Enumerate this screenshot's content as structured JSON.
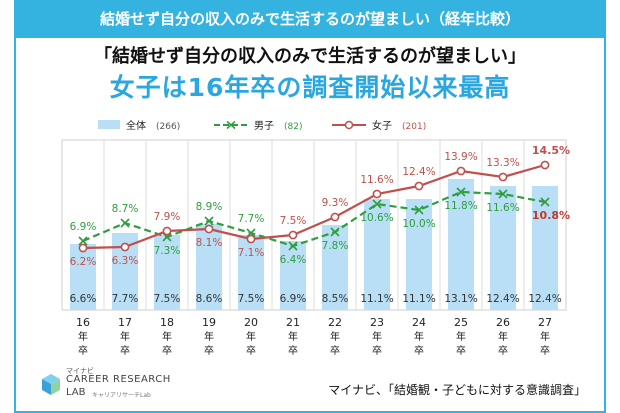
{
  "banner": {
    "title": "結婚せず自分の収入のみで生活するのが望ましい（経年比較）"
  },
  "headline": {
    "line1": "「結婚せず自分の収入のみで生活するのが望ましい」",
    "line2": "女子は16年卒の調査開始以来最高"
  },
  "source_text": "マイナビ、「結婚観・子どもに対する意識調査」",
  "logo": {
    "small": "マイナビ",
    "main": "CAREER RESEARCH",
    "lab": "LAB",
    "sub": "キャリアリサーチLab"
  },
  "chart_data": {
    "type": "bar+line",
    "categories": [
      "16年卒",
      "17年卒",
      "18年卒",
      "19年卒",
      "20年卒",
      "21年卒",
      "22年卒",
      "23年卒",
      "24年卒",
      "25年卒",
      "26年卒",
      "27年卒"
    ],
    "ylim": [
      0,
      17
    ],
    "grid": true,
    "legend_position": "top",
    "series": [
      {
        "name": "全体",
        "n_label": "(266)",
        "kind": "bar",
        "color": "#b8dff5",
        "values": [
          6.6,
          7.7,
          7.5,
          8.6,
          7.5,
          6.9,
          8.5,
          11.1,
          11.1,
          13.1,
          12.4,
          12.4
        ]
      },
      {
        "name": "男子",
        "n_label": "(82)",
        "kind": "line-dashed",
        "color": "#2e9e3e",
        "values": [
          6.9,
          8.7,
          7.3,
          8.9,
          7.7,
          6.4,
          7.8,
          10.6,
          10.0,
          11.8,
          11.6,
          10.8
        ]
      },
      {
        "name": "女子",
        "n_label": "(201)",
        "kind": "line",
        "color": "#c0504d",
        "values": [
          6.2,
          6.3,
          7.9,
          8.1,
          7.1,
          7.5,
          9.3,
          11.6,
          12.4,
          13.9,
          13.3,
          14.5
        ]
      }
    ],
    "label_format": "%"
  }
}
